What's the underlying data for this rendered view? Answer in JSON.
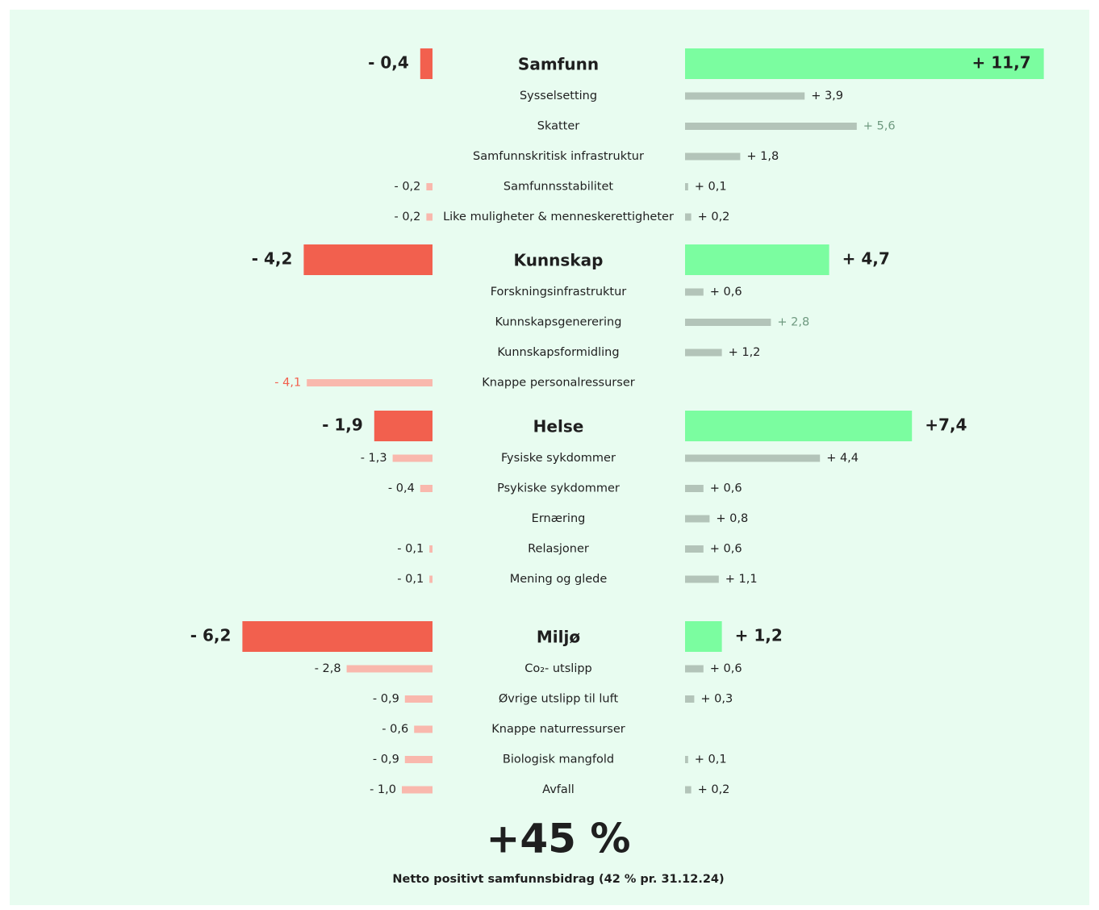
{
  "chart_data": {
    "type": "diverging_bar",
    "negative_color": "#f2604e",
    "negative_sub_color": "#f9b8ad",
    "positive_color": "#7bfda0",
    "positive_sub_color": "#b3c4b9",
    "headline": "+45 %",
    "caption": "Netto positivt samfunnsbidrag (42 % pr. 31.12.24)",
    "groups": [
      {
        "name": "Samfunn",
        "negative": -0.4,
        "negative_label": "- 0,4",
        "positive": 11.7,
        "positive_label": "+ 11,7",
        "items": [
          {
            "name": "Sysselsetting",
            "negative": null,
            "negative_label": null,
            "positive": 3.9,
            "positive_label": "+ 3,9"
          },
          {
            "name": "Skatter",
            "negative": null,
            "negative_label": null,
            "positive": 5.6,
            "positive_label": "+ 5,6",
            "label_color": "#6f9a80"
          },
          {
            "name": "Samfunnskritisk infrastruktur",
            "negative": null,
            "negative_label": null,
            "positive": 1.8,
            "positive_label": "+ 1,8"
          },
          {
            "name": "Samfunnsstabilitet",
            "negative": -0.2,
            "negative_label": "- 0,2",
            "positive": 0.1,
            "positive_label": "+ 0,1"
          },
          {
            "name": "Like muligheter & menneskerettigheter",
            "negative": -0.2,
            "negative_label": "- 0,2",
            "positive": 0.2,
            "positive_label": "+ 0,2"
          }
        ]
      },
      {
        "name": "Kunnskap",
        "negative": -4.2,
        "negative_label": "- 4,2",
        "positive": 4.7,
        "positive_label": "+ 4,7",
        "items": [
          {
            "name": "Forskningsinfrastruktur",
            "negative": null,
            "negative_label": null,
            "positive": 0.6,
            "positive_label": "+ 0,6"
          },
          {
            "name": "Kunnskapsgenerering",
            "negative": null,
            "negative_label": null,
            "positive": 2.8,
            "positive_label": "+ 2,8",
            "label_color": "#6f9a80"
          },
          {
            "name": "Kunnskapsformidling",
            "negative": null,
            "negative_label": null,
            "positive": 1.2,
            "positive_label": "+ 1,2"
          },
          {
            "name": "Knappe personalressurser",
            "negative": -4.1,
            "negative_label": "- 4,1",
            "positive": null,
            "positive_label": null,
            "label_color": "#f2604e"
          }
        ]
      },
      {
        "name": "Helse",
        "negative": -1.9,
        "negative_label": "- 1,9",
        "positive": 7.4,
        "positive_label": "+7,4",
        "items": [
          {
            "name": "Fysiske sykdommer",
            "negative": -1.3,
            "negative_label": "- 1,3",
            "positive": 4.4,
            "positive_label": "+ 4,4"
          },
          {
            "name": "Psykiske sykdommer",
            "negative": -0.4,
            "negative_label": "- 0,4",
            "positive": 0.6,
            "positive_label": "+ 0,6"
          },
          {
            "name": "Ernæring",
            "negative": null,
            "negative_label": null,
            "positive": 0.8,
            "positive_label": "+ 0,8"
          },
          {
            "name": "Relasjoner",
            "negative": -0.1,
            "negative_label": "- 0,1",
            "positive": 0.6,
            "positive_label": "+ 0,6"
          },
          {
            "name": "Mening og glede",
            "negative": -0.1,
            "negative_label": "- 0,1",
            "positive": 1.1,
            "positive_label": "+ 1,1"
          }
        ]
      },
      {
        "name": "Miljø",
        "negative": -6.2,
        "negative_label": "- 6,2",
        "positive": 1.2,
        "positive_label": "+ 1,2",
        "items": [
          {
            "name": "Co₂- utslipp",
            "negative": -2.8,
            "negative_label": "- 2,8",
            "positive": 0.6,
            "positive_label": "+ 0,6"
          },
          {
            "name": "Øvrige utslipp til luft",
            "negative": -0.9,
            "negative_label": "- 0,9",
            "positive": 0.3,
            "positive_label": "+ 0,3"
          },
          {
            "name": "Knappe naturressurser",
            "negative": -0.6,
            "negative_label": "- 0,6",
            "positive": null,
            "positive_label": null
          },
          {
            "name": "Biologisk mangfold",
            "negative": -0.9,
            "negative_label": "- 0,9",
            "positive": 0.1,
            "positive_label": "+ 0,1"
          },
          {
            "name": "Avfall",
            "negative": -1.0,
            "negative_label": "- 1,0",
            "positive": 0.2,
            "positive_label": "+ 0,2"
          }
        ]
      }
    ]
  }
}
